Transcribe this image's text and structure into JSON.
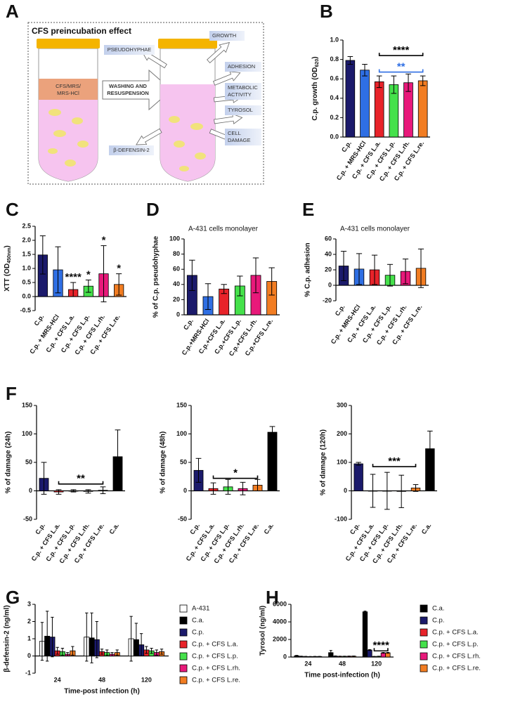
{
  "diagram": {
    "label": "A",
    "title": "CFS preincubation effect",
    "tube_label": [
      "CFS/MRS/",
      "MRS-HCl"
    ],
    "arrow_label": [
      "WASHING AND",
      "RESUSPENSION"
    ],
    "effects": {
      "pseudohyphae": "PSEUDOHYPHAE",
      "defensin": "β-DEFENSIN-2",
      "growth": "GROWTH",
      "adhesion": "ADHESION",
      "metabolic": [
        "METABOLIC",
        "ACTIVITY"
      ],
      "tyrosol": "TYROSOL",
      "damage": [
        "CELL",
        "DAMAGE"
      ]
    }
  },
  "chart_data": [
    {
      "label": "B",
      "type": "bar",
      "ylabel": [
        {
          "text": "C.p. growth (OD"
        },
        {
          "text": "620",
          "sub": true
        },
        {
          "text": ")"
        }
      ],
      "categories": [
        "C.p.",
        "C.p. + MRS-HCl",
        "C.p. + CFS L.a.",
        "C.p. + CFS L.p.",
        "C.p. + CFS L.rh.",
        "C.p. + CFS L.re."
      ],
      "values": [
        0.79,
        0.69,
        0.57,
        0.54,
        0.56,
        0.58
      ],
      "errors": [
        0.04,
        0.06,
        0.06,
        0.09,
        0.09,
        0.05
      ],
      "colors": [
        "#1b1a6b",
        "#2f6fe4",
        "#e8232a",
        "#45e14b",
        "#e8197a",
        "#f27d22"
      ],
      "ylim": [
        0,
        1
      ],
      "yticks": [
        {
          "value": 0,
          "label": "0.0"
        },
        0.2,
        0.4,
        0.6,
        0.8,
        {
          "value": 1,
          "label": "1.0"
        }
      ],
      "annotations": [
        {
          "text": "****",
          "color": "#000000",
          "y": 0.84,
          "from": "C.p. + CFS L.a.",
          "to": "C.p. + CFS L.re."
        },
        {
          "text": "**",
          "color": "#2f6fe4",
          "y": 0.67,
          "from": "C.p. + CFS L.a.",
          "to": "C.p. + CFS L.re."
        }
      ]
    },
    {
      "label": "C",
      "type": "bar",
      "ylabel": [
        {
          "text": "XTT (OD"
        },
        {
          "text": "450nm",
          "sub": true
        },
        {
          "text": ")"
        }
      ],
      "categories": [
        "C.p.",
        "C.p. + MRS-HCl",
        "C.p. + CFS L.a.",
        "C.p. + CFS L.p.",
        "C.p. + CFS L.rh.",
        "C.p. + CFS L.re."
      ],
      "values": [
        1.48,
        0.95,
        0.25,
        0.37,
        0.81,
        0.43
      ],
      "errors": [
        0.68,
        0.82,
        0.25,
        0.22,
        1.0,
        0.38
      ],
      "colors": [
        "#1b1a6b",
        "#2f6fe4",
        "#e8232a",
        "#45e14b",
        "#e8197a",
        "#f27d22"
      ],
      "significance": [
        null,
        null,
        "****",
        "*",
        "*",
        "*"
      ],
      "ylim": [
        -0.5,
        2.5
      ],
      "yticks": [
        -0.5,
        {
          "value": 0,
          "label": "0.0"
        },
        0.5,
        {
          "value": 1,
          "label": "1.0"
        },
        1.5,
        {
          "value": 2,
          "label": "2.0"
        },
        2.5
      ]
    },
    {
      "label": "D",
      "type": "bar",
      "subtitle": "A-431 cells monolayer",
      "ylabel": "% of C.p. pseudohyphae",
      "categories": [
        "C.p.",
        "C.p.+MRS-HCl",
        "C.p.+CFS L.a.",
        "C.p.+CFS L.p.",
        "C.p.+CFS L.rh.",
        "C.p.+CFS L.re."
      ],
      "values": [
        52,
        24,
        34,
        38,
        52,
        44
      ],
      "errors": [
        20,
        17,
        6,
        13,
        23,
        18
      ],
      "colors": [
        "#1b1a6b",
        "#2f6fe4",
        "#e8232a",
        "#45e14b",
        "#e8197a",
        "#f27d22"
      ],
      "ylim": [
        0,
        100
      ],
      "yticks": [
        0,
        20,
        40,
        60,
        80,
        100
      ]
    },
    {
      "label": "E",
      "type": "bar",
      "subtitle": "A-431 cells monolayer",
      "ylabel": "% C.p. adhesion",
      "categories": [
        "C.p.",
        "C.p. + MRS-HCl",
        "C.p. + CFS L.a.",
        "C.p. + CFS L.p.",
        "C.p. + CFS L.rh.",
        "C.p. + CFS L.re."
      ],
      "values": [
        25,
        21,
        20,
        13,
        18,
        22
      ],
      "errors": [
        19,
        20,
        19,
        14,
        16,
        25
      ],
      "colors": [
        "#1b1a6b",
        "#2f6fe4",
        "#e8232a",
        "#45e14b",
        "#e8197a",
        "#f27d22"
      ],
      "ylim": [
        -20,
        60
      ],
      "yticks": [
        -20,
        0,
        20,
        40,
        60
      ]
    },
    {
      "label": "F",
      "type": "bar",
      "ylabel": "% of damage (24h)",
      "categories": [
        "C.p.",
        "C.p. + CFS L.a.",
        "C.p. + CFS L.p.",
        "C.p. + CFS L.rh.",
        "C.p. + CFS L.re.",
        "C.a."
      ],
      "values": [
        22,
        -2,
        0,
        -1,
        1,
        60
      ],
      "errors": [
        28,
        4,
        2,
        3,
        6,
        47
      ],
      "colors": [
        "#1b1a6b",
        "#e8232a",
        "#45e14b",
        "#e8197a",
        "#f27d22",
        "#000000"
      ],
      "ylim": [
        -50,
        150
      ],
      "yticks": [
        -50,
        0,
        50,
        100,
        150
      ],
      "annotations": [
        {
          "text": "**",
          "color": "#000000",
          "y": 12,
          "from": "C.p. + CFS L.a.",
          "to": "C.p. + CFS L.re."
        }
      ]
    },
    {
      "type": "bar",
      "ylabel": "% of damage (48h)",
      "categories": [
        "C.p.",
        "C.p. + CFS L.a.",
        "C.p. + CFS L.p.",
        "C.p. + CFS L.rh.",
        "C.p. + CFS L.re.",
        "C.a."
      ],
      "values": [
        36,
        4,
        7,
        4,
        10,
        103
      ],
      "errors": [
        21,
        10,
        13,
        11,
        10,
        10
      ],
      "colors": [
        "#1b1a6b",
        "#e8232a",
        "#45e14b",
        "#e8197a",
        "#f27d22",
        "#000000"
      ],
      "ylim": [
        -50,
        150
      ],
      "yticks": [
        -50,
        0,
        50,
        100,
        150
      ],
      "annotations": [
        {
          "text": "*",
          "color": "#000000",
          "y": 22,
          "from": "C.p. + CFS L.a.",
          "to": "C.p. + CFS L.re."
        }
      ]
    },
    {
      "type": "bar",
      "ylabel": "% of damage (120h)",
      "categories": [
        "C.p.",
        "C.p. + CFS L.a.",
        "C.p. + CFS L.p.",
        "C.p. + CFS L.rh.",
        "C.p. + CFS L.re.",
        "C.a."
      ],
      "values": [
        95,
        0,
        0,
        -2,
        10,
        148
      ],
      "errors": [
        5,
        58,
        65,
        57,
        12,
        62
      ],
      "colors": [
        "#1b1a6b",
        "#e8232a",
        "#45e14b",
        "#e8197a",
        "#f27d22",
        "#000000"
      ],
      "ylim": [
        -100,
        300
      ],
      "yticks": [
        -100,
        0,
        100,
        200,
        300
      ],
      "annotations": [
        {
          "text": "***",
          "color": "#000000",
          "y": 85,
          "from": "C.p. + CFS L.a.",
          "to": "C.p. + CFS L.re."
        }
      ]
    },
    {
      "label": "G",
      "type": "bar",
      "ylabel": "β-defensin-2 (ng/ml)",
      "xlabel": "Time-post infection (h)",
      "categories": [
        "24",
        "48",
        "120"
      ],
      "series": [
        {
          "name": "A-431",
          "color": "#ffffff",
          "values": [
            0.85,
            1.1,
            1.0
          ],
          "errors": [
            1.1,
            1.4,
            1.3
          ]
        },
        {
          "name": "C.a.",
          "color": "#000000",
          "values": [
            1.15,
            1.05,
            0.95
          ],
          "errors": [
            1.45,
            1.45,
            0.95
          ]
        },
        {
          "name": "C.p.",
          "color": "#1b1a6b",
          "values": [
            1.1,
            0.95,
            0.65
          ],
          "errors": [
            1.15,
            1.05,
            0.65
          ]
        },
        {
          "name": "C.p. + CFS L.a.",
          "color": "#e8232a",
          "values": [
            0.3,
            0.25,
            0.35
          ],
          "errors": [
            0.2,
            0.15,
            0.2
          ]
        },
        {
          "name": "C.p. + CFS L.p.",
          "color": "#45e14b",
          "values": [
            0.25,
            0.2,
            0.3
          ],
          "errors": [
            0.2,
            0.15,
            0.15
          ]
        },
        {
          "name": "C.p. + CFS L.rh.",
          "color": "#e8197a",
          "values": [
            0.1,
            0.1,
            0.2
          ],
          "errors": [
            0.1,
            0.1,
            0.15
          ]
        },
        {
          "name": "C.p. + CFS L.re.",
          "color": "#f27d22",
          "values": [
            0.3,
            0.2,
            0.25
          ],
          "errors": [
            0.25,
            0.15,
            0.15
          ]
        }
      ],
      "ylim": [
        -1,
        3
      ],
      "yticks": [
        -1,
        0,
        1,
        2,
        3
      ]
    },
    {
      "label": "H",
      "type": "bar",
      "ylabel": "Tyrosol (ng/ml)",
      "xlabel": "Time post-infection (h)",
      "categories": [
        "24",
        "48",
        "120"
      ],
      "series": [
        {
          "name": "C.a.",
          "color": "#000000",
          "values": [
            150,
            500,
            5150
          ],
          "errors": [
            40,
            250,
            80
          ]
        },
        {
          "name": "C.p.",
          "color": "#1b1a6b",
          "values": [
            80,
            100,
            800
          ],
          "errors": [
            20,
            30,
            50
          ]
        },
        {
          "name": "C.p. + CFS L.a.",
          "color": "#e8232a",
          "values": [
            60,
            80,
            60
          ],
          "errors": [
            15,
            20,
            15
          ]
        },
        {
          "name": "C.p. + CFS L.p.",
          "color": "#45e14b",
          "values": [
            50,
            80,
            80
          ],
          "errors": [
            15,
            20,
            15
          ]
        },
        {
          "name": "C.p. + CFS L.rh.",
          "color": "#e8197a",
          "values": [
            60,
            90,
            480
          ],
          "errors": [
            15,
            20,
            40
          ]
        },
        {
          "name": "C.p. + CFS L.re.",
          "color": "#f27d22",
          "values": [
            60,
            100,
            480
          ],
          "errors": [
            15,
            20,
            40
          ]
        }
      ],
      "ylim": [
        0,
        6000
      ],
      "yticks": [
        0,
        2000,
        4000,
        6000
      ],
      "annotations": [
        {
          "text": "****",
          "color": "#000000",
          "y": 700,
          "category": "120",
          "from": "C.p. + CFS L.a.",
          "to": "C.p. + CFS L.re."
        }
      ]
    }
  ]
}
